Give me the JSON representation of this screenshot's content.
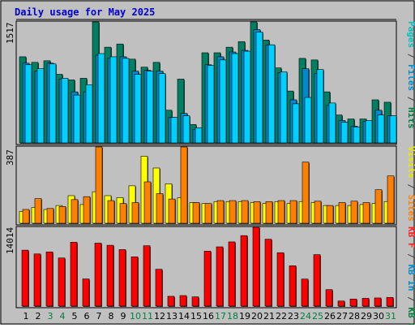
{
  "chart_data": {
    "type": "bar",
    "title": "Daily usage for May 2025",
    "categories": [
      "1",
      "2",
      "3",
      "4",
      "5",
      "6",
      "7",
      "8",
      "9",
      "10",
      "11",
      "12",
      "13",
      "14",
      "15",
      "16",
      "17",
      "18",
      "19",
      "20",
      "21",
      "22",
      "23",
      "24",
      "25",
      "26",
      "27",
      "28",
      "29",
      "30",
      "31"
    ],
    "weekend_days": [
      "3",
      "4",
      "10",
      "11",
      "17",
      "18",
      "24",
      "25",
      "31"
    ],
    "panels": [
      {
        "name": "top",
        "ymax_label": "1517",
        "ylim": [
          0,
          1517
        ],
        "side_labels": [
          {
            "text": "Pages",
            "color": "#00c0c0"
          },
          {
            "text": " / ",
            "color": "#404040"
          },
          {
            "text": "Files",
            "color": "#008cc8"
          },
          {
            "text": " / ",
            "color": "#404040"
          },
          {
            "text": "Hits",
            "color": "#008040"
          }
        ],
        "series": [
          {
            "name": "Hits",
            "color": "#008060",
            "values": [
              1080,
              1010,
              1030,
              860,
              790,
              810,
              1517,
              1200,
              1240,
              1050,
              950,
              1010,
              410,
              800,
              230,
              1130,
              1130,
              1200,
              1270,
              1517,
              1290,
              940,
              650,
              1060,
              1040,
              640,
              350,
              300,
              300,
              540,
              510
            ]
          },
          {
            "name": "Files",
            "color": "#0088cc",
            "values": [
              1000,
              900,
              1000,
              800,
              640,
              640,
              1100,
              1060,
              1080,
              900,
              910,
              900,
              320,
              370,
              170,
              980,
              1080,
              1140,
              1160,
              1420,
              1230,
              880,
              540,
              930,
              870,
              470,
              280,
              210,
              270,
              410,
              340
            ]
          },
          {
            "name": "Pages",
            "color": "#00d0ff",
            "values": [
              980,
              930,
              990,
              810,
              600,
              730,
              1120,
              1080,
              1060,
              860,
              900,
              870,
              320,
              340,
              190,
              970,
              1040,
              1120,
              1150,
              1390,
              1230,
              890,
              490,
              570,
              920,
              500,
              260,
              200,
              280,
              350,
              340
            ]
          }
        ]
      },
      {
        "name": "middle",
        "ymax_label": "387",
        "ylim": [
          0,
          387
        ],
        "side_labels": [
          {
            "text": "Visits",
            "color": "#e8e800"
          },
          {
            "text": " / ",
            "color": "#404040"
          },
          {
            "text": "Sites",
            "color": "#ff8000"
          }
        ],
        "series": [
          {
            "name": "Visits",
            "color": "#ffff00",
            "values": [
              60,
              80,
              70,
              90,
              140,
              95,
              160,
              140,
              130,
              190,
              340,
              280,
              200,
              130,
              105,
              100,
              110,
              110,
              110,
              105,
              100,
              110,
              100,
              110,
              105,
              90,
              90,
              90,
              95,
              100,
              110
            ]
          },
          {
            "name": "Sites",
            "color": "#ff8000",
            "values": [
              70,
              125,
              75,
              85,
              120,
              135,
              387,
              115,
              100,
              105,
              210,
              150,
              123,
              387,
              105,
              100,
              115,
              115,
              115,
              110,
              110,
              115,
              115,
              310,
              112,
              90,
              105,
              112,
              105,
              170,
              240
            ]
          }
        ]
      },
      {
        "name": "bottom",
        "ymax_label": "14014",
        "ylim": [
          0,
          14014
        ],
        "side_labels": [
          {
            "text": "KB F",
            "color": "#ff2020"
          },
          {
            "text": " / ",
            "color": "#404040"
          },
          {
            "text": "KB In",
            "color": "#008cc8"
          },
          {
            "text": " / ",
            "color": "#404040"
          },
          {
            "text": "KB Out",
            "color": "#008040"
          }
        ],
        "series": [
          {
            "name": "KB F",
            "color": "#ff0000",
            "values": [
              9950,
              9280,
              9640,
              8560,
              11360,
              4830,
              11200,
              10820,
              10050,
              8770,
              10740,
              6550,
              1740,
              1870,
              1640,
              9770,
              10540,
              11420,
              12540,
              14014,
              11900,
              9500,
              7180,
              4810,
              9160,
              2930,
              900,
              1250,
              1380,
              1450,
              1540
            ]
          }
        ]
      }
    ]
  }
}
